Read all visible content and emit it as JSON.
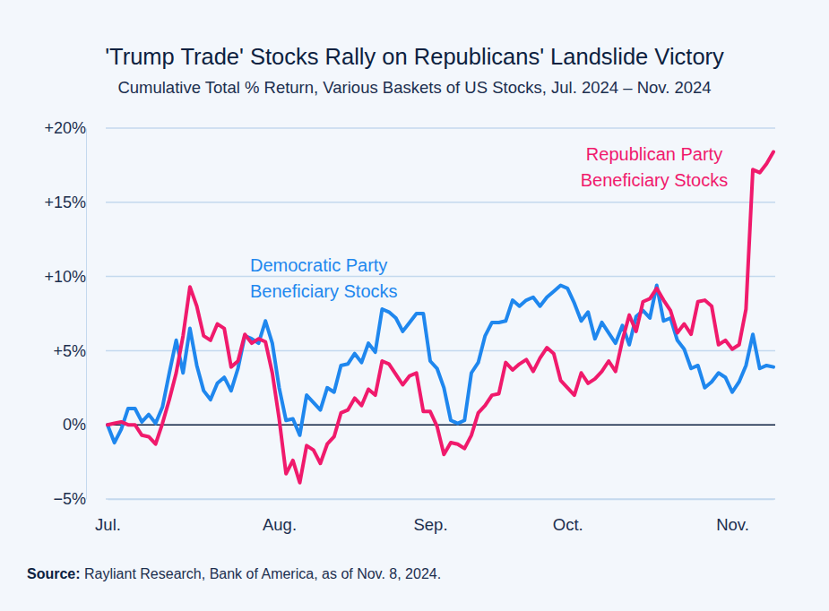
{
  "chart_data": {
    "type": "line",
    "title": "'Trump Trade' Stocks Rally on Republicans' Landslide Victory",
    "subtitle": "Cumulative Total % Return, Various Baskets of US Stocks, Jul. 2024 – Nov. 2024",
    "source": "Source: Rayliant Research, Bank of America, as of Nov. 8, 2024.",
    "categories": [
      "Jul.",
      null,
      null,
      null,
      null,
      null,
      null,
      null,
      null,
      null,
      null,
      null,
      null,
      null,
      null,
      null,
      null,
      null,
      null,
      null,
      null,
      null,
      null,
      null,
      null,
      "Aug.",
      null,
      null,
      null,
      null,
      null,
      null,
      null,
      null,
      null,
      null,
      null,
      null,
      null,
      null,
      null,
      null,
      null,
      null,
      null,
      null,
      null,
      "Sep.",
      null,
      null,
      null,
      null,
      null,
      null,
      null,
      null,
      null,
      null,
      null,
      null,
      null,
      null,
      null,
      null,
      null,
      null,
      null,
      "Oct.",
      null,
      null,
      null,
      null,
      null,
      null,
      null,
      null,
      null,
      null,
      null,
      null,
      null,
      null,
      null,
      null,
      null,
      null,
      null,
      null,
      null,
      null,
      null,
      "Nov.",
      null,
      null,
      null,
      null,
      null,
      null
    ],
    "series": [
      {
        "name": "Democratic Party Beneficiary Stocks",
        "color": "#1f87ee",
        "values": [
          0,
          -1.2,
          -0.3,
          1.1,
          1.1,
          0.2,
          0.7,
          0.1,
          1.2,
          3.5,
          5.7,
          3.5,
          6.5,
          4,
          2.3,
          1.7,
          2.8,
          3.2,
          2.3,
          3.8,
          6,
          5.8,
          5.5,
          7,
          5.5,
          2.5,
          0.3,
          0.4,
          -0.7,
          2,
          1.5,
          1,
          2.5,
          2.2,
          4,
          4.1,
          4.8,
          4.2,
          5.5,
          4.9,
          7.8,
          7.6,
          7.2,
          6.3,
          6.9,
          7.5,
          7.5,
          4.3,
          3.8,
          2.5,
          0.3,
          0.1,
          0.3,
          3.5,
          4.2,
          6,
          6.9,
          6.9,
          7,
          8.4,
          8,
          8.4,
          8.6,
          8,
          8.6,
          9,
          9.4,
          9.2,
          8.2,
          7,
          7.6,
          5.8,
          6.9,
          6.2,
          5.5,
          6.7,
          5.4,
          7.3,
          7.7,
          7.2,
          9.4,
          7,
          7.2,
          5.7,
          5.1,
          3.8,
          4,
          2.5,
          2.9,
          3.5,
          3.2,
          2.2,
          2.9,
          4,
          6.1,
          3.8,
          4,
          3.9
        ]
      },
      {
        "name": "Republican Party Beneficiary Stocks",
        "color": "#f01a6c",
        "values": [
          0,
          0.1,
          0.2,
          0,
          0,
          -0.7,
          -0.8,
          -1.3,
          0.1,
          1.7,
          3.5,
          6,
          9.3,
          8,
          6,
          5.7,
          6.8,
          6.5,
          3.9,
          4.3,
          6.1,
          5.5,
          5.8,
          5.6,
          3.5,
          0.4,
          -3.3,
          -2.4,
          -3.9,
          -1.4,
          -1.7,
          -2.6,
          -1.3,
          -0.8,
          0.8,
          1,
          1.8,
          1.3,
          2.4,
          2,
          4.3,
          4.1,
          3.4,
          2.7,
          3.3,
          3.5,
          0.9,
          0.9,
          -0.1,
          -2,
          -1.2,
          -1.3,
          -1.6,
          -0.7,
          0.8,
          1.3,
          2,
          2.1,
          4.2,
          3.7,
          4.1,
          4.4,
          3.6,
          4.5,
          5.2,
          4.8,
          3,
          2.5,
          2,
          3.5,
          2.8,
          3.1,
          3.6,
          4.3,
          3.6,
          5.7,
          7.4,
          6.3,
          8.3,
          8.5,
          9.2,
          8.4,
          7.7,
          6.2,
          6.8,
          6.1,
          8.3,
          8.4,
          8,
          5.4,
          5.7,
          5.1,
          5.4,
          7.8,
          17.2,
          17,
          17.6,
          18.4
        ]
      }
    ],
    "ylim": [
      -5,
      20
    ],
    "yticks": [
      {
        "value": -5,
        "label": "−5%"
      },
      {
        "value": 0,
        "label": "0%"
      },
      {
        "value": 5,
        "label": "+5%"
      },
      {
        "value": 10,
        "label": "+10%"
      },
      {
        "value": 15,
        "label": "+15%"
      },
      {
        "value": 20,
        "label": "+20%"
      }
    ],
    "grid": true
  }
}
